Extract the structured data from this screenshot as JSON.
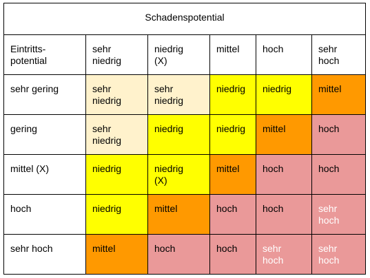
{
  "title": "Schadenspotential",
  "corner_label": "Eintritts-\npotential",
  "columns": [
    "sehr\nniedrig",
    "niedrig\n(X)",
    "mittel",
    "hoch",
    "sehr\nhoch"
  ],
  "rows": [
    {
      "label": "sehr gering",
      "cells": [
        "sehr\nniedrig",
        "sehr\nniedrig",
        "niedrig",
        "niedrig",
        "mittel"
      ]
    },
    {
      "label": "gering",
      "cells": [
        "sehr\nniedrig",
        "niedrig",
        "niedrig",
        "mittel",
        "hoch"
      ]
    },
    {
      "label": "mittel (X)",
      "cells": [
        "niedrig",
        "niedrig\n(X)",
        "mittel",
        "hoch",
        "hoch"
      ]
    },
    {
      "label": "hoch",
      "cells": [
        "niedrig",
        "mittel",
        "hoch",
        "hoch",
        "sehr\nhoch"
      ]
    },
    {
      "label": "sehr hoch",
      "cells": [
        "mittel",
        "hoch",
        "hoch",
        "sehr\nhoch",
        "sehr\nhoch"
      ]
    }
  ],
  "colors": {
    "sehr_niedrig": "#fff2cc",
    "niedrig": "#ffff00",
    "mittel": "#ff9900",
    "hoch": "#ea9999",
    "sehr_hoch": "#ea9999"
  }
}
